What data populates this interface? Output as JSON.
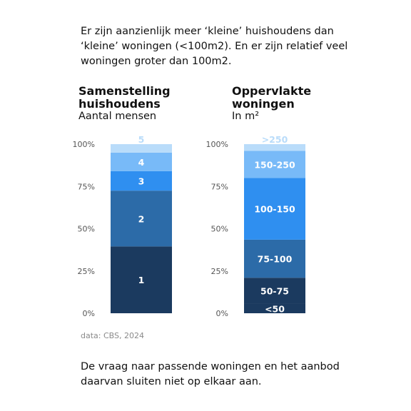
{
  "intro_text": "Er zijn aanzienlijk meer ‘kleine’ huishoudens dan ‘kleine’ woningen (<100m2). En er zijn relatief veel woningen groter dan 100m2.",
  "outro_text": "De vraag naar passende woningen en het aanbod daarvan sluiten niet op elkaar aan.",
  "source_text": "data: CBS, 2024",
  "colors": {
    "c1": "#1b3a5f",
    "c2": "#2c6ba8",
    "c3": "#2f8ff0",
    "c4": "#78baf8",
    "c5": "#b9dcfa",
    "label_light": "#ffffff",
    "label_dark_bg": "#b9dcfa"
  },
  "chart_data": [
    {
      "type": "bar",
      "stacked": true,
      "title": "Samenstelling huishoudens",
      "subtitle": "Aantal mensen",
      "yticks": [
        "0%",
        "25%",
        "50%",
        "75%",
        "100%"
      ],
      "ylim": [
        0,
        100
      ],
      "segments": [
        {
          "label": "1",
          "value": 39.5
        },
        {
          "label": "2",
          "value": 33.0
        },
        {
          "label": "3",
          "value": 11.5
        },
        {
          "label": "4",
          "value": 11.0
        },
        {
          "label": "5",
          "value": 5.0
        }
      ]
    },
    {
      "type": "bar",
      "stacked": true,
      "title": "Oppervlakte woningen",
      "subtitle": "In m²",
      "yticks": [
        "0%",
        "25%",
        "50%",
        "75%",
        "100%"
      ],
      "ylim": [
        0,
        100
      ],
      "segments": [
        {
          "label": "<50",
          "value": 5.5
        },
        {
          "label": "50-75",
          "value": 15.5
        },
        {
          "label": "75-100",
          "value": 22.5
        },
        {
          "label": "100-150",
          "value": 36.5
        },
        {
          "label": "150-250",
          "value": 16.0
        },
        {
          "label": ">250",
          "value": 4.0
        }
      ]
    }
  ]
}
